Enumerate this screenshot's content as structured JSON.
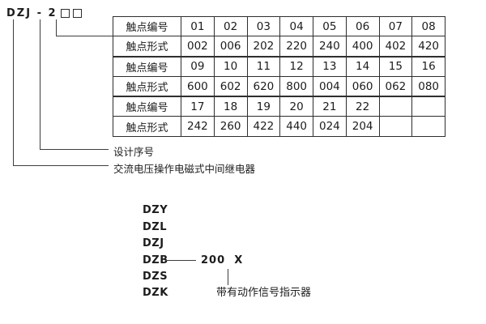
{
  "model_code": {
    "text": "DZJ - 2"
  },
  "table": {
    "rows": [
      {
        "label": "触点编号",
        "values": [
          "01",
          "02",
          "03",
          "04",
          "05",
          "06",
          "07",
          "08"
        ]
      },
      {
        "label": "触点形式",
        "values": [
          "002",
          "006",
          "202",
          "220",
          "240",
          "400",
          "402",
          "420"
        ]
      },
      {
        "label": "触点编号",
        "values": [
          "09",
          "10",
          "11",
          "12",
          "13",
          "14",
          "15",
          "16"
        ]
      },
      {
        "label": "触点形式",
        "values": [
          "600",
          "602",
          "620",
          "800",
          "004",
          "060",
          "062",
          "080"
        ]
      },
      {
        "label": "触点编号",
        "values": [
          "17",
          "18",
          "19",
          "20",
          "21",
          "22",
          "",
          ""
        ]
      },
      {
        "label": "触点形式",
        "values": [
          "242",
          "260",
          "422",
          "440",
          "024",
          "204",
          "",
          ""
        ]
      }
    ]
  },
  "callouts": {
    "design_serial_label": "设计序号",
    "relay_type_label": "交流电压操作电磁式中间继电器"
  },
  "model_series": {
    "items": [
      "DZY",
      "DZL",
      "DZJ",
      "DZB",
      "DZS",
      "DZK"
    ],
    "dzb_value": "200  X",
    "indicator_label": "带有动作信号指示器"
  },
  "colors": {
    "text": "#1c1c1c",
    "line": "#3d3d3d",
    "border": "#2e2e2e",
    "background": "#ffffff"
  }
}
